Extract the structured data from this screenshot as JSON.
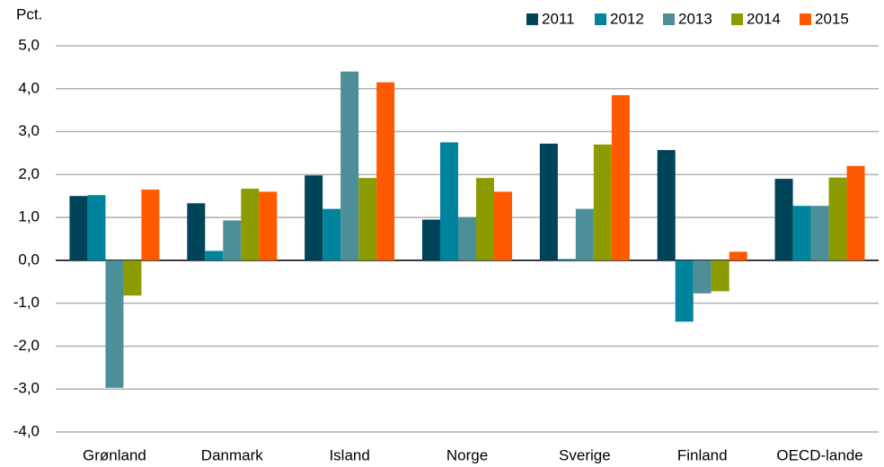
{
  "chart_data": {
    "type": "bar",
    "y_label": "Pct.",
    "categories": [
      "Grønland",
      "Danmark",
      "Island",
      "Norge",
      "Sverige",
      "Finland",
      "OECD-lande"
    ],
    "series": [
      {
        "name": "2011",
        "color": "#004459",
        "values": [
          1.5,
          1.33,
          1.98,
          0.95,
          2.72,
          2.57,
          1.9
        ]
      },
      {
        "name": "2012",
        "color": "#00849e",
        "values": [
          1.52,
          0.22,
          1.2,
          2.75,
          0.03,
          -1.43,
          1.27
        ]
      },
      {
        "name": "2013",
        "color": "#4d8f99",
        "values": [
          -2.97,
          0.93,
          4.4,
          1.0,
          1.2,
          -0.77,
          1.27
        ]
      },
      {
        "name": "2014",
        "color": "#8c9c00",
        "values": [
          -0.82,
          1.67,
          1.92,
          1.92,
          2.7,
          -0.72,
          1.93
        ]
      },
      {
        "name": "2015",
        "color": "#ff5a00",
        "values": [
          1.65,
          1.6,
          4.15,
          1.6,
          3.85,
          0.2,
          2.2
        ]
      }
    ],
    "ylim": [
      -4,
      5
    ],
    "yticks": [
      {
        "value": -4,
        "label": "-4,0"
      },
      {
        "value": -3,
        "label": "-3,0"
      },
      {
        "value": -2,
        "label": "-2,0"
      },
      {
        "value": -1,
        "label": "-1,0"
      },
      {
        "value": 0,
        "label": "0,0"
      },
      {
        "value": 1,
        "label": "1,0"
      },
      {
        "value": 2,
        "label": "2,0"
      },
      {
        "value": 3,
        "label": "3,0"
      },
      {
        "value": 4,
        "label": "4,0"
      },
      {
        "value": 5,
        "label": "5,0"
      }
    ],
    "grid": true,
    "legend": "top-right"
  }
}
